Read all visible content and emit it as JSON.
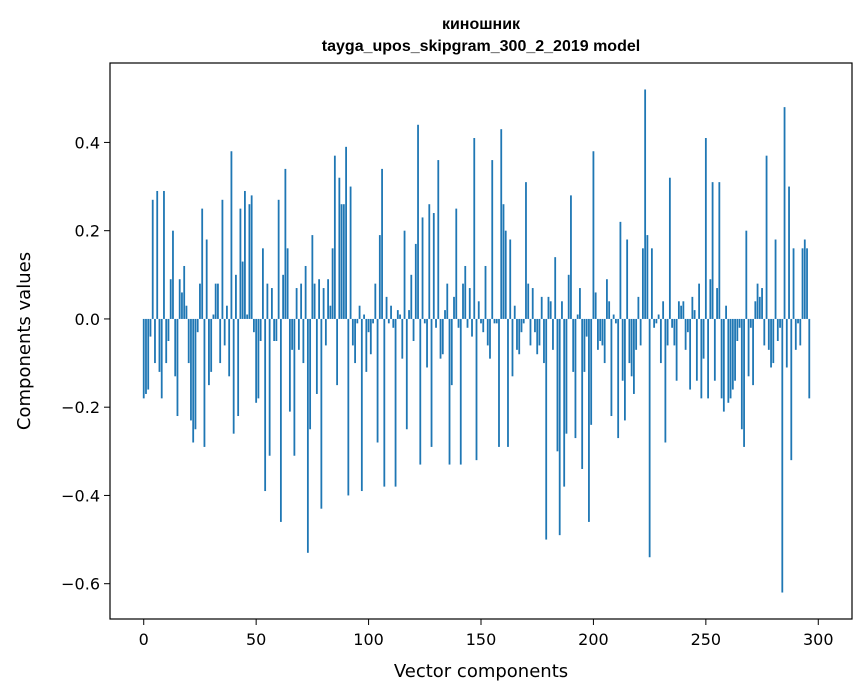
{
  "chart_data": {
    "type": "bar",
    "title_line1": "киношник",
    "title_line2": "tayga_upos_skipgram_300_2_2019 model",
    "xlabel": "Vector components",
    "ylabel": "Components values",
    "xlim": [
      -15,
      315
    ],
    "ylim": [
      -0.68,
      0.58
    ],
    "x_ticks": [
      0,
      50,
      100,
      150,
      200,
      250,
      300
    ],
    "x_tick_labels": [
      "0",
      "50",
      "100",
      "150",
      "200",
      "250",
      "300"
    ],
    "y_ticks": [
      -0.6,
      -0.4,
      -0.2,
      0.0,
      0.2,
      0.4
    ],
    "y_tick_labels": [
      "−0.6",
      "−0.4",
      "−0.2",
      "0.0",
      "0.2",
      "0.4"
    ],
    "bar_color": "#1f77b4",
    "grid": false,
    "values": [
      -0.18,
      -0.17,
      -0.16,
      -0.04,
      0.27,
      -0.1,
      0.29,
      -0.12,
      -0.18,
      0.29,
      -0.1,
      -0.05,
      0.09,
      0.2,
      -0.13,
      -0.22,
      0.09,
      0.06,
      0.12,
      0.03,
      -0.1,
      -0.23,
      -0.28,
      -0.25,
      -0.03,
      0.08,
      0.25,
      -0.29,
      0.18,
      -0.15,
      -0.12,
      0.01,
      0.08,
      0.08,
      -0.1,
      0.27,
      -0.06,
      0.03,
      -0.13,
      0.38,
      -0.26,
      0.1,
      -0.22,
      0.25,
      0.13,
      0.29,
      0.01,
      0.26,
      0.28,
      -0.03,
      -0.19,
      -0.18,
      -0.05,
      0.16,
      -0.39,
      0.08,
      -0.31,
      0.07,
      -0.05,
      -0.05,
      0.27,
      -0.46,
      0.1,
      0.34,
      0.16,
      -0.21,
      -0.07,
      -0.31,
      0.07,
      -0.07,
      0.08,
      -0.1,
      0.12,
      -0.53,
      -0.25,
      0.19,
      0.08,
      -0.17,
      0.09,
      -0.43,
      0.07,
      -0.06,
      0.09,
      0.03,
      0.16,
      0.37,
      -0.15,
      0.32,
      0.26,
      0.26,
      0.39,
      -0.4,
      0.3,
      -0.06,
      -0.1,
      -0.01,
      0.03,
      -0.39,
      0.01,
      -0.12,
      -0.03,
      -0.08,
      -0.01,
      0.08,
      -0.28,
      0.19,
      0.34,
      -0.38,
      0.05,
      -0.01,
      0.03,
      -0.02,
      -0.38,
      0.02,
      0.01,
      -0.09,
      0.2,
      -0.25,
      0.02,
      0.1,
      -0.05,
      0.17,
      0.44,
      -0.33,
      0.23,
      -0.01,
      -0.11,
      0.26,
      -0.29,
      0.24,
      -0.02,
      0.36,
      -0.09,
      -0.08,
      0.02,
      0.08,
      -0.33,
      -0.15,
      0.05,
      0.25,
      -0.02,
      -0.33,
      0.08,
      0.12,
      -0.02,
      0.07,
      -0.04,
      0.41,
      -0.32,
      0.04,
      -0.01,
      -0.03,
      0.12,
      -0.06,
      -0.09,
      0.36,
      -0.01,
      -0.01,
      -0.29,
      0.43,
      0.26,
      0.2,
      -0.29,
      0.18,
      -0.13,
      0.03,
      -0.07,
      -0.08,
      -0.03,
      -0.01,
      0.31,
      0.08,
      -0.06,
      0.07,
      -0.03,
      -0.08,
      -0.06,
      0.05,
      -0.1,
      -0.5,
      0.05,
      0.04,
      -0.07,
      0.14,
      -0.3,
      -0.49,
      0.04,
      -0.38,
      -0.26,
      0.1,
      0.28,
      -0.12,
      -0.27,
      0.01,
      0.07,
      -0.34,
      -0.12,
      -0.04,
      -0.46,
      -0.24,
      0.38,
      0.06,
      -0.07,
      -0.05,
      -0.06,
      -0.1,
      0.09,
      0.04,
      -0.22,
      0.01,
      -0.01,
      -0.27,
      0.22,
      -0.14,
      -0.23,
      0.18,
      -0.1,
      -0.13,
      -0.17,
      -0.07,
      0.05,
      -0.06,
      0.16,
      0.52,
      0.19,
      -0.54,
      0.16,
      -0.02,
      -0.01,
      0.01,
      -0.1,
      0.04,
      -0.28,
      -0.06,
      0.32,
      -0.02,
      -0.06,
      -0.14,
      0.04,
      0.03,
      0.04,
      -0.07,
      -0.03,
      -0.16,
      0.05,
      0.02,
      -0.14,
      0.08,
      -0.18,
      -0.09,
      0.41,
      -0.18,
      0.09,
      0.31,
      -0.14,
      0.07,
      0.31,
      -0.18,
      -0.21,
      0.03,
      -0.19,
      -0.18,
      -0.16,
      -0.14,
      -0.05,
      -0.02,
      -0.25,
      -0.29,
      0.2,
      -0.13,
      -0.02,
      -0.15,
      0.04,
      0.08,
      0.05,
      0.07,
      -0.06,
      0.37,
      -0.07,
      -0.11,
      -0.1,
      0.18,
      -0.05,
      -0.02,
      -0.62,
      0.48,
      -0.11,
      0.3,
      -0.32,
      0.16,
      -0.07,
      -0.01,
      -0.06,
      0.16,
      0.18,
      0.16,
      -0.18
    ]
  }
}
